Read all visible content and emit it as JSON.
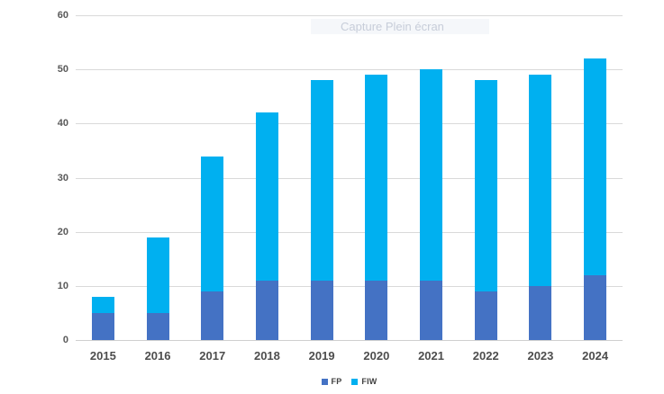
{
  "watermark": {
    "label": "Capture Plein écran"
  },
  "axes": {
    "y_tick_labels": [
      "0",
      "10",
      "20",
      "30",
      "40",
      "50",
      "60"
    ],
    "x_tick_labels": [
      "2015",
      "2016",
      "2017",
      "2018",
      "2019",
      "2020",
      "2021",
      "2022",
      "2023",
      "2024"
    ]
  },
  "legend": {
    "items": [
      {
        "label": "FP",
        "color": "#4472C4"
      },
      {
        "label": "FIW",
        "color": "#00B0F0"
      }
    ]
  },
  "colors": {
    "fp": "#4472C4",
    "fiw": "#00B0F0",
    "gridline": "#d9d9d9",
    "axis_line": "#cfcfcf",
    "tick_text": "#595959"
  },
  "chart_data": {
    "type": "bar",
    "stacked": true,
    "title": "",
    "xlabel": "",
    "ylabel": "",
    "categories": [
      "2015",
      "2016",
      "2017",
      "2018",
      "2019",
      "2020",
      "2021",
      "2022",
      "2023",
      "2024"
    ],
    "series": [
      {
        "name": "FP",
        "color": "#4472C4",
        "values": [
          5,
          5,
          9,
          11,
          11,
          11,
          11,
          9,
          10,
          12
        ]
      },
      {
        "name": "FIW",
        "color": "#00B0F0",
        "values": [
          3,
          14,
          25,
          31,
          37,
          38,
          39,
          39,
          39,
          40
        ]
      }
    ],
    "totals": [
      8,
      19,
      34,
      42,
      48,
      49,
      50,
      48,
      49,
      52
    ],
    "ylim": [
      0,
      60
    ],
    "yticks": [
      0,
      10,
      20,
      30,
      40,
      50,
      60
    ],
    "grid": true,
    "legend_position": "bottom"
  }
}
